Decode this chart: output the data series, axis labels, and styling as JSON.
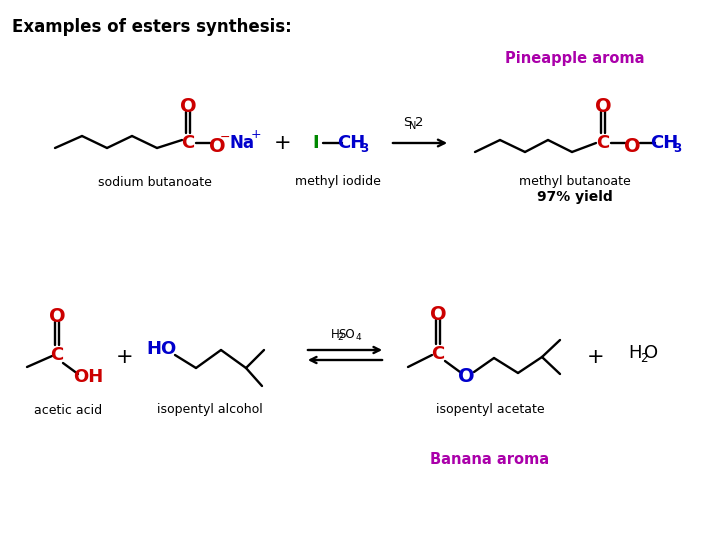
{
  "title": "Examples of esters synthesis:",
  "title_color": "#000000",
  "title_fontsize": 12,
  "pineapple_label": "Pineapple aroma",
  "pineapple_color": "#aa00aa",
  "banana_label": "Banana aroma",
  "banana_color": "#aa00aa",
  "yield_label": "97% yield",
  "yield_color": "#000000",
  "background": "#ffffff",
  "colors": {
    "black": "#000000",
    "red": "#cc0000",
    "blue": "#0000cc",
    "green": "#008800",
    "purple": "#aa00aa"
  }
}
